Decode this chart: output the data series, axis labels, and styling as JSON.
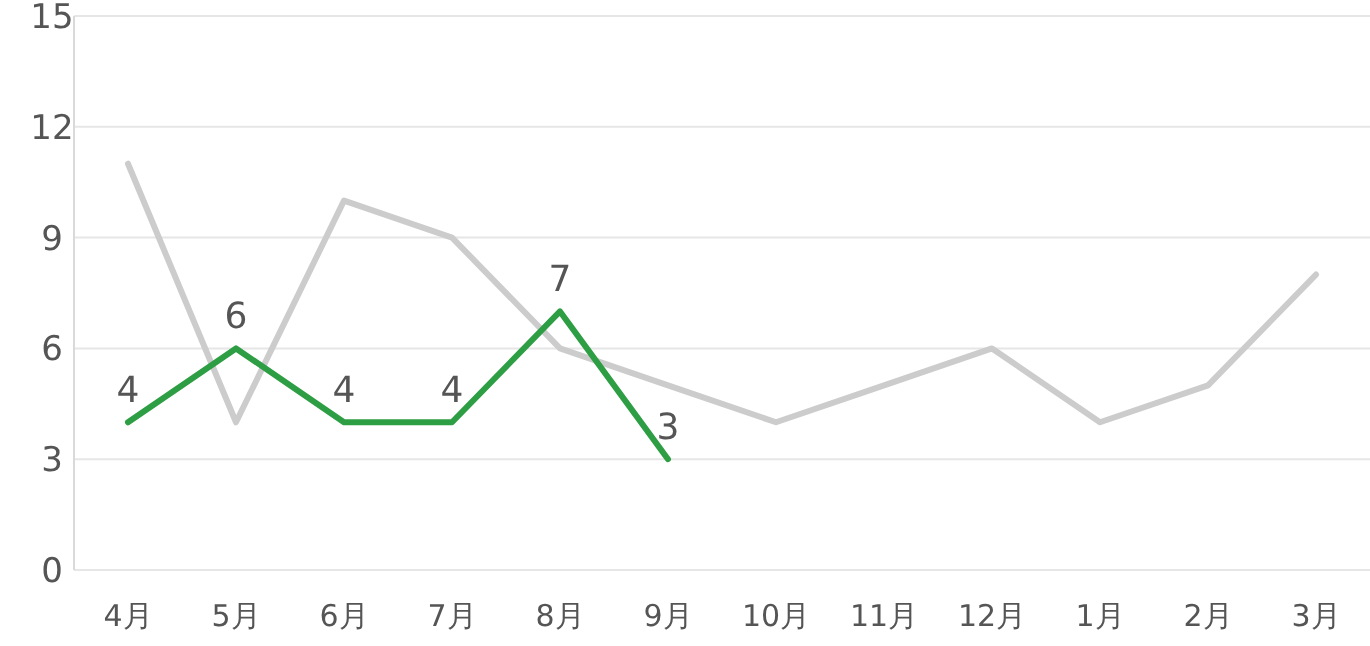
{
  "chart_data": {
    "type": "line",
    "categories": [
      "4月",
      "5月",
      "6月",
      "7月",
      "8月",
      "9月",
      "10月",
      "11月",
      "12月",
      "1月",
      "2月",
      "3月"
    ],
    "ylim": [
      0,
      15
    ],
    "yticks": [
      0,
      3,
      6,
      9,
      12,
      15
    ],
    "grid": "y",
    "marker": "none",
    "series": [
      {
        "color": "#cccccc",
        "values": [
          11,
          4,
          10,
          9,
          6,
          5,
          4,
          5,
          6,
          4,
          5,
          8
        ]
      },
      {
        "color": "#2e9e44",
        "values": [
          4,
          6,
          4,
          4,
          7,
          3,
          null,
          null,
          null,
          null,
          null,
          null
        ],
        "value_labels": [
          "4",
          "6",
          "4",
          "4",
          "7",
          "3",
          null,
          null,
          null,
          null,
          null,
          null
        ]
      }
    ]
  }
}
